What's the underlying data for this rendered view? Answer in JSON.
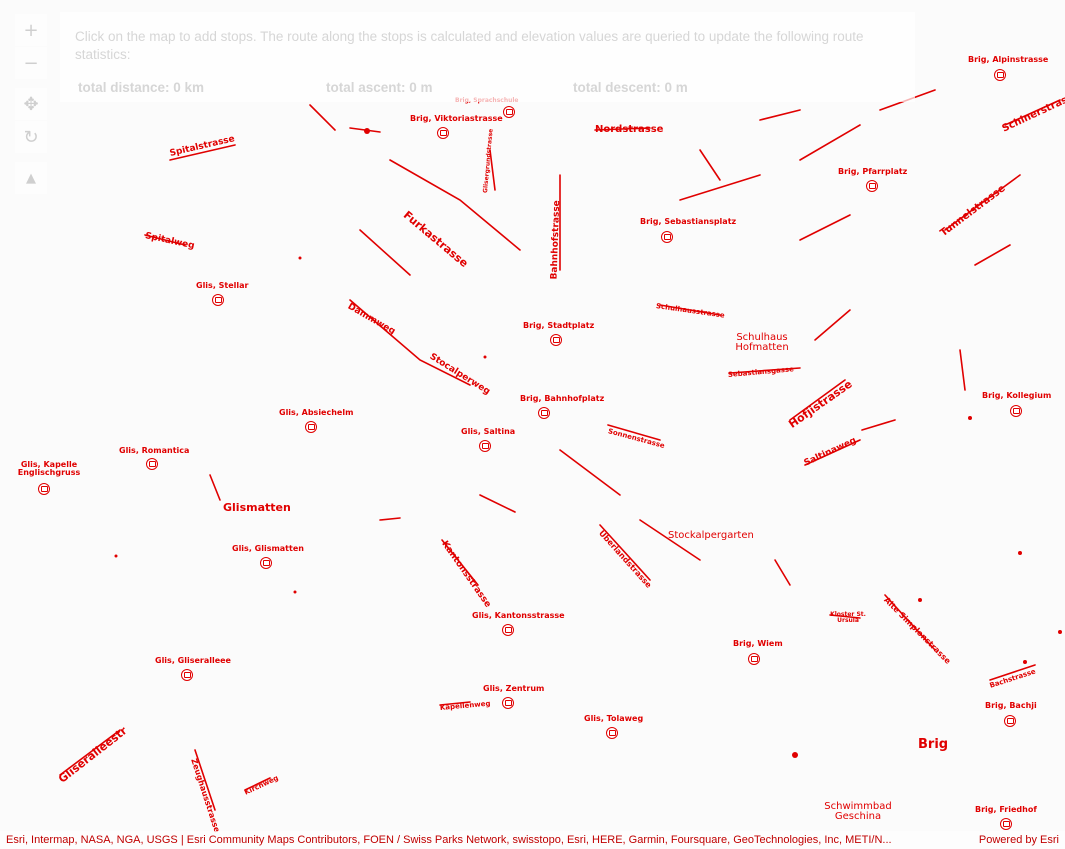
{
  "panel": {
    "instructions": "Click on the map to add stops. The route along the stops is calculated and elevation values are queried to update the following route statistics:",
    "total_distance": "total distance: 0 km",
    "total_ascent": "total ascent: 0 m",
    "total_descent": "total descent: 0 m"
  },
  "controls": {
    "zoom_in": "+",
    "zoom_out": "−",
    "pan": "✥",
    "rotate": "↻",
    "compass": "▲"
  },
  "attribution": {
    "text": "Esri, Intermap, NASA, NGA, USGS | Esri Community Maps Contributors, FOEN / Swiss Parks Network, swisstopo, Esri, HERE, Garmin, Foursquare, GeoTechnologies, Inc, METI/N...",
    "powered_by": "Powered by Esri"
  },
  "map": {
    "colors": {
      "label": "#e00000",
      "road": "#e00000",
      "background": "#fbfbfb"
    },
    "streets": [
      "Spitalstrasse",
      "Spitalweg",
      "Furkastrasse",
      "Sonnenstrasse",
      "Bahnhofstrasse",
      "Nordstrasse",
      "Tunnelstrasse",
      "Schinerstrasse",
      "Hofjistrasse",
      "Saltinaweg",
      "Glisergrundstrasse",
      "Gliseralleestr",
      "Zeughausstrasse",
      "Kirchweg",
      "Kantonsstrasse",
      "Überlandstrasse",
      "Alte Simplonstrasse",
      "Stocalperweg",
      "Dammweg",
      "Kapellenweg",
      "Bachstrasse",
      "Schulhausstrasse",
      "Sebastiansgasse"
    ],
    "stops": [
      "Brig, Viktoriastrasse",
      "Brig, Sebastiansplatz",
      "Brig, Stadtplatz",
      "Brig, Bahnhofplatz",
      "Brig, Sprachschule",
      "Brig, Pfarrplatz",
      "Brig, Alpinstrasse",
      "Brig, Kollegium",
      "Brig, Wiem",
      "Brig, Bachji",
      "Brig, Friedhof",
      "Glis, Saltina",
      "Glis, Stellar",
      "Glis, Absiechelm",
      "Glis, Romantica",
      "Glis, Kapelle Englischgruss",
      "Glis, Glismatten",
      "Glis, Gliseralleee",
      "Glis, Kantonsstrasse",
      "Glis, Zentrum",
      "Glis, Tolaweg"
    ],
    "places": [
      "Glismatten",
      "Schulhaus Hofmatten",
      "Stockalpergarten",
      "Brig",
      "Schwimmbad Geschina",
      "Kloster St. Ursula"
    ]
  }
}
